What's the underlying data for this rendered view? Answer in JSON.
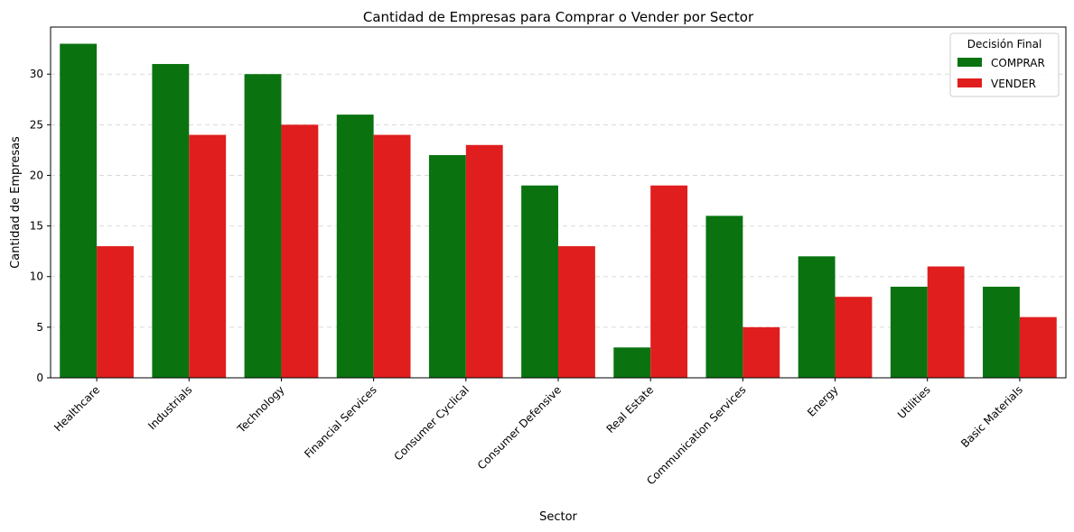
{
  "chart_data": {
    "type": "bar",
    "title": "Cantidad de Empresas para Comprar o Vender por Sector",
    "xlabel": "Sector",
    "ylabel": "Cantidad de Empresas",
    "categories": [
      "Healthcare",
      "Industrials",
      "Technology",
      "Financial Services",
      "Consumer Cyclical",
      "Consumer Defensive",
      "Real Estate",
      "Communication Services",
      "Energy",
      "Utilities",
      "Basic Materials"
    ],
    "series": [
      {
        "name": "COMPRAR",
        "color": "#0a7310",
        "values": [
          33,
          31,
          30,
          26,
          22,
          19,
          3,
          16,
          12,
          9,
          9
        ]
      },
      {
        "name": "VENDER",
        "color": "#e01e1e",
        "values": [
          13,
          24,
          25,
          24,
          23,
          13,
          19,
          5,
          8,
          11,
          6
        ]
      }
    ],
    "ylim": [
      0,
      34.65
    ],
    "yticks": [
      0,
      5,
      10,
      15,
      20,
      25,
      30
    ],
    "grid": "y, dashed",
    "legend": {
      "title": "Decisión Final",
      "placement": "top-right"
    }
  }
}
